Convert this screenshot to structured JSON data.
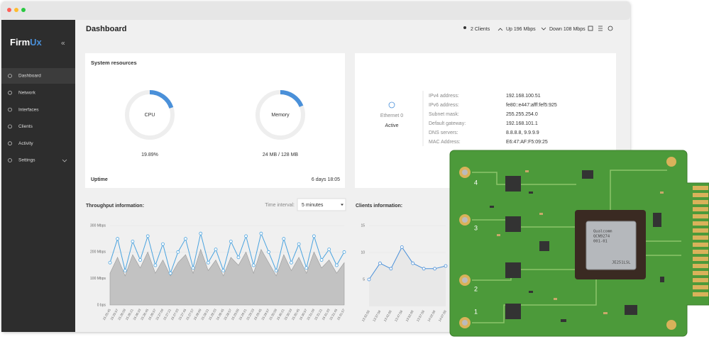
{
  "header": {
    "brand_a": "Firm",
    "brand_b": "Ux",
    "title": "Dashboard",
    "clients": "2 Clients",
    "up": "Up 196 Mbps",
    "down": "Down 108 Mbps"
  },
  "menu": [
    "Dashboard",
    "Network",
    "Interfaces",
    "Clients",
    "Activity",
    "Settings"
  ],
  "system": {
    "title": "System resources",
    "cpu": {
      "label": "CPU",
      "value": 19.89,
      "value_label": "19.89%"
    },
    "memory": {
      "label": "Memory",
      "used": 24,
      "total": 128,
      "value_label": "24 MB / 128 MB"
    },
    "uptime_label": "Uptime",
    "uptime": "6 days 18:05"
  },
  "network": {
    "interface": "Ethernet 0",
    "status": "Active",
    "rows": [
      [
        "IPv4 address:",
        "192.168.100.51"
      ],
      [
        "IPv6 address:",
        "fe80::e447:afff:fef5:925"
      ],
      [
        "Subnet mask:",
        "255.255.254.0"
      ],
      [
        "Default gateway:",
        "192.168.101.1"
      ],
      [
        "DNS servers:",
        "8.8.8.8, 9.9.9.9"
      ],
      [
        "MAC Address:",
        "E6:47:AF:F5:09:25"
      ]
    ]
  },
  "throughput": {
    "type": "line",
    "title": "Throughput information:",
    "interval_label": "Time interval:",
    "interval": "5 minutes",
    "ylim": [
      0,
      300
    ],
    "yticks": [
      {
        "value": 0,
        "label": "0 bps"
      },
      {
        "value": 100,
        "label": "100 Mbps"
      },
      {
        "value": 200,
        "label": "200 Mbps"
      },
      {
        "value": 300,
        "label": "300 Mbps"
      }
    ],
    "categories": [
      "15:25:45",
      "15:25:57",
      "15:26:09",
      "15:26:21",
      "15:26:33",
      "15:26:45",
      "15:26:57",
      "15:27:09",
      "15:27:21",
      "15:27:33",
      "15:27:45",
      "15:27:57",
      "15:28:09",
      "15:28:21",
      "15:28:33",
      "15:28:45",
      "15:28:57",
      "15:29:09",
      "15:29:21",
      "15:29:33",
      "15:29:45",
      "15:29:57",
      "15:30:09",
      "15:30:21",
      "15:30:33",
      "15:30:45",
      "15:30:57",
      "15:31:09",
      "15:31:21",
      "15:31:33",
      "15:31:45",
      "15:31:57"
    ],
    "series": [
      {
        "color": "#bdbdbd",
        "values": [
          120,
          180,
          110,
          190,
          140,
          200,
          120,
          170,
          110,
          160,
          190,
          120,
          210,
          130,
          170,
          110,
          180,
          150,
          200,
          120,
          210,
          160,
          110,
          190,
          130,
          180,
          120,
          200,
          140,
          170,
          120,
          160
        ]
      },
      {
        "color": "#4aa3df",
        "values": [
          160,
          250,
          130,
          240,
          170,
          260,
          150,
          230,
          120,
          200,
          250,
          140,
          270,
          160,
          210,
          130,
          240,
          180,
          260,
          150,
          270,
          200,
          130,
          250,
          160,
          230,
          140,
          260,
          170,
          210,
          150,
          200
        ]
      }
    ]
  },
  "clients": {
    "type": "line",
    "title": "Clients information:",
    "ylim": [
      0,
      15
    ],
    "yticks": [
      5,
      10,
      15
    ],
    "categories": [
      "13:32:58",
      "13:37:58",
      "13:42:58",
      "13:47:58",
      "13:52:58",
      "13:57:58",
      "14:02:58",
      "14:07:58"
    ],
    "series": [
      {
        "color": "#4a90d9",
        "values": [
          5,
          8,
          7,
          11,
          8,
          7,
          7,
          7.5
        ]
      }
    ]
  },
  "board": {
    "ports": [
      "4",
      "3",
      "2",
      "1"
    ],
    "chip": [
      "Qualcomm",
      "QCN9274",
      "001-01",
      "JE251LSL"
    ]
  }
}
